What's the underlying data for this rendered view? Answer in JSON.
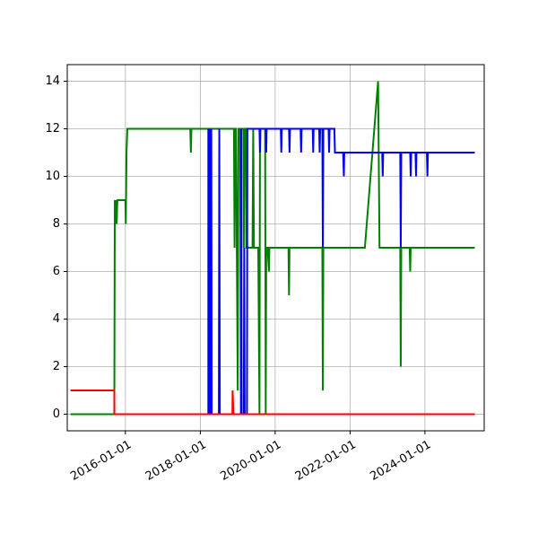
{
  "chart_data": {
    "type": "line",
    "title": "",
    "xlabel": "",
    "ylabel": "",
    "xlim": [
      "2014-06-13",
      "2025-08-01"
    ],
    "ylim": [
      -0.7,
      14.7
    ],
    "grid": true,
    "x_ticks": [
      "2016-01-01",
      "2018-01-01",
      "2020-01-01",
      "2022-01-01",
      "2024-01-01"
    ],
    "y_ticks": [
      0,
      2,
      4,
      6,
      8,
      10,
      12,
      14
    ],
    "x_tick_labels": [
      "2016-01-01",
      "2018-01-01",
      "2020-01-01",
      "2022-01-01",
      "2024-01-01"
    ],
    "y_tick_labels": [
      "0",
      "2",
      "4",
      "6",
      "8",
      "10",
      "12",
      "14"
    ],
    "series": [
      {
        "color": "#008000",
        "points": [
          [
            "2014-07-15",
            0
          ],
          [
            "2015-09-15",
            0
          ],
          [
            "2015-09-20",
            9
          ],
          [
            "2015-09-25",
            8
          ],
          [
            "2015-10-01",
            9
          ],
          [
            "2015-10-08",
            8
          ],
          [
            "2015-10-15",
            9
          ],
          [
            "2016-01-01",
            9
          ],
          [
            "2016-01-05",
            8
          ],
          [
            "2016-01-12",
            11
          ],
          [
            "2016-01-20",
            12
          ],
          [
            "2017-09-25",
            12
          ],
          [
            "2017-10-01",
            11
          ],
          [
            "2017-10-06",
            12
          ],
          [
            "2018-11-25",
            12
          ],
          [
            "2018-12-01",
            7
          ],
          [
            "2018-12-06",
            12
          ],
          [
            "2018-12-15",
            12
          ],
          [
            "2019-01-01",
            1
          ],
          [
            "2019-01-08",
            12
          ],
          [
            "2019-01-25",
            12
          ],
          [
            "2019-02-01",
            1
          ],
          [
            "2019-02-08",
            12
          ],
          [
            "2019-03-01",
            12
          ],
          [
            "2019-03-01",
            7
          ],
          [
            "2019-03-06",
            12
          ],
          [
            "2019-03-20",
            12
          ],
          [
            "2019-03-25",
            7
          ],
          [
            "2019-04-08",
            7
          ],
          [
            "2019-05-25",
            7
          ],
          [
            "2019-06-01",
            12
          ],
          [
            "2019-06-08",
            7
          ],
          [
            "2019-07-20",
            7
          ],
          [
            "2019-08-01",
            0
          ],
          [
            "2019-08-06",
            12
          ],
          [
            "2019-09-25",
            12
          ],
          [
            "2019-10-01",
            0
          ],
          [
            "2019-10-06",
            7
          ],
          [
            "2019-10-20",
            7
          ],
          [
            "2019-11-01",
            6
          ],
          [
            "2019-11-06",
            7
          ],
          [
            "2020-05-10",
            7
          ],
          [
            "2020-05-15",
            5
          ],
          [
            "2020-05-20",
            7
          ],
          [
            "2021-04-05",
            7
          ],
          [
            "2021-04-10",
            1
          ],
          [
            "2021-04-15",
            7
          ],
          [
            "2022-05-25",
            7
          ],
          [
            "2022-10-01",
            14
          ],
          [
            "2022-10-15",
            7
          ],
          [
            "2023-05-05",
            7
          ],
          [
            "2023-05-10",
            2
          ],
          [
            "2023-05-15",
            7
          ],
          [
            "2023-08-05",
            7
          ],
          [
            "2023-08-10",
            6
          ],
          [
            "2023-08-15",
            7
          ],
          [
            "2025-05-01",
            7
          ]
        ]
      },
      {
        "color": "#0000ff",
        "points": [
          [
            "2016-01-20",
            0
          ],
          [
            "2018-03-20",
            0
          ],
          [
            "2018-03-20",
            12
          ],
          [
            "2018-03-24",
            0
          ],
          [
            "2018-03-24",
            12
          ],
          [
            "2018-03-28",
            0
          ],
          [
            "2018-04-01",
            12
          ],
          [
            "2018-04-05",
            0
          ],
          [
            "2018-04-09",
            12
          ],
          [
            "2018-04-13",
            0
          ],
          [
            "2018-04-18",
            12
          ],
          [
            "2018-04-22",
            0
          ],
          [
            "2018-07-01",
            0
          ],
          [
            "2018-07-05",
            12
          ],
          [
            "2018-07-10",
            0
          ],
          [
            "2019-02-01",
            0
          ],
          [
            "2019-02-04",
            12
          ],
          [
            "2019-02-08",
            0
          ],
          [
            "2019-03-01",
            0
          ],
          [
            "2019-03-05",
            7
          ],
          [
            "2019-03-10",
            0
          ],
          [
            "2019-04-01",
            0
          ],
          [
            "2019-04-05",
            12
          ],
          [
            "2019-08-01",
            12
          ],
          [
            "2019-08-06",
            11
          ],
          [
            "2019-08-10",
            12
          ],
          [
            "2019-10-01",
            12
          ],
          [
            "2019-10-06",
            11
          ],
          [
            "2019-10-10",
            12
          ],
          [
            "2020-02-25",
            12
          ],
          [
            "2020-03-01",
            11
          ],
          [
            "2020-03-05",
            12
          ],
          [
            "2020-05-15",
            12
          ],
          [
            "2020-05-20",
            11
          ],
          [
            "2020-05-25",
            12
          ],
          [
            "2020-09-05",
            12
          ],
          [
            "2020-09-10",
            11
          ],
          [
            "2020-09-15",
            12
          ],
          [
            "2021-01-01",
            12
          ],
          [
            "2021-01-06",
            11
          ],
          [
            "2021-01-10",
            12
          ],
          [
            "2021-03-05",
            12
          ],
          [
            "2021-03-10",
            11
          ],
          [
            "2021-03-15",
            12
          ],
          [
            "2021-04-05",
            12
          ],
          [
            "2021-04-10",
            7
          ],
          [
            "2021-04-15",
            12
          ],
          [
            "2021-06-05",
            12
          ],
          [
            "2021-06-10",
            11
          ],
          [
            "2021-06-15",
            12
          ],
          [
            "2021-08-01",
            12
          ],
          [
            "2021-08-06",
            11
          ],
          [
            "2021-08-10",
            11
          ],
          [
            "2021-10-25",
            11
          ],
          [
            "2021-11-01",
            10
          ],
          [
            "2021-11-05",
            11
          ],
          [
            "2022-11-10",
            11
          ],
          [
            "2022-11-15",
            10
          ],
          [
            "2022-11-20",
            11
          ],
          [
            "2023-05-05",
            11
          ],
          [
            "2023-05-10",
            7
          ],
          [
            "2023-05-15",
            11
          ],
          [
            "2023-08-10",
            11
          ],
          [
            "2023-08-15",
            10
          ],
          [
            "2023-08-20",
            11
          ],
          [
            "2023-10-01",
            11
          ],
          [
            "2023-10-06",
            10
          ],
          [
            "2023-10-10",
            11
          ],
          [
            "2024-01-20",
            11
          ],
          [
            "2024-01-25",
            10
          ],
          [
            "2024-01-30",
            11
          ],
          [
            "2025-05-01",
            11
          ]
        ]
      },
      {
        "color": "#ff0000",
        "points": [
          [
            "2014-07-15",
            1
          ],
          [
            "2015-09-15",
            1
          ],
          [
            "2015-09-16",
            0
          ],
          [
            "2018-11-10",
            0
          ],
          [
            "2018-11-12",
            1
          ],
          [
            "2018-11-20",
            0
          ],
          [
            "2025-05-01",
            0
          ]
        ]
      }
    ]
  }
}
